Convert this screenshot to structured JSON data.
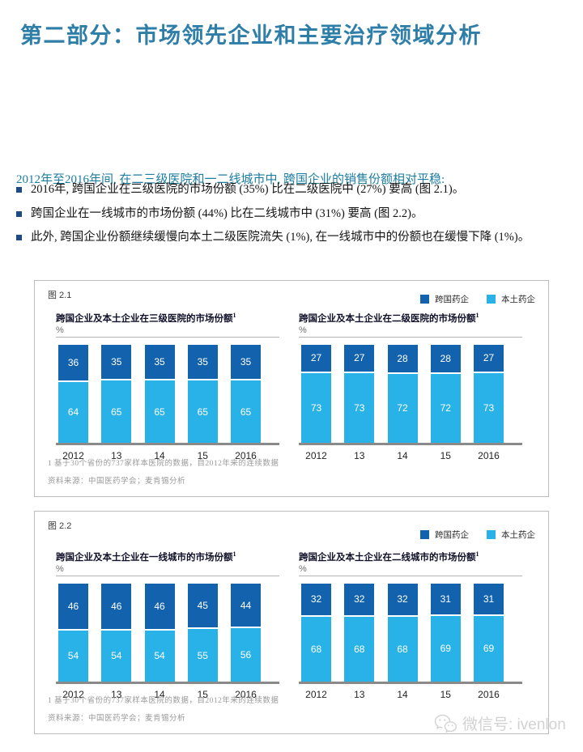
{
  "header": {
    "title": "第二部分：市场领先企业和主要治疗领域分析"
  },
  "intro": {
    "text": "2012年至2016年间, 在二三级医院和一二线城市中, 跨国企业的销售份额相对平稳:"
  },
  "bullets": [
    "2016年, 跨国企业在三级医院的市场份额 (35%) 比在二级医院中 (27%) 要高 (图 2.1)。",
    "跨国企业在一线城市的市场份额 (44%) 比在二线城市中 (31%) 要高 (图 2.2)。",
    "此外, 跨国企业份额继续缓慢向本土二级医院流失 (1%), 在一线城市中的份额也在缓慢下降 (1%)。"
  ],
  "legend": [
    {
      "key": "multinational",
      "label": "跨国药企"
    },
    {
      "key": "local",
      "label": "本土药企"
    }
  ],
  "colors": {
    "title_teal": "#2e7ea7",
    "multinational": "#1362ad",
    "local": "#29b2e8",
    "axis_gray": "#8a8a8a",
    "watermark_gray": "#d2d2d2"
  },
  "figures": [
    {
      "label": "图 2.1",
      "chart_indexes": [
        0,
        1
      ],
      "footnotes": [
        "1 基于30个省份的737家样本医院的数据，自2012年来的连续数据",
        "资料来源：中国医药学会；麦肯锡分析"
      ]
    },
    {
      "label": "图 2.2",
      "chart_indexes": [
        2,
        3
      ],
      "footnotes": [
        "1 基于30个省份的737家样本医院的数据，自2012年来的连续数据",
        "资料来源：中国医药学会；麦肯锡分析"
      ]
    }
  ],
  "chart_data": [
    {
      "type": "bar",
      "stacked": true,
      "title": "跨国企业及本土企业在三级医院的市场份额",
      "title_sup": "1",
      "ylabel": "%",
      "ylim": [
        0,
        100
      ],
      "legend_position": "top-right",
      "categories": [
        "2012",
        "13",
        "14",
        "15",
        "2016"
      ],
      "series": [
        {
          "name": "跨国药企",
          "values": [
            36,
            35,
            35,
            35,
            35
          ]
        },
        {
          "name": "本土药企",
          "values": [
            64,
            65,
            65,
            65,
            65
          ]
        }
      ]
    },
    {
      "type": "bar",
      "stacked": true,
      "title": "跨国企业及本土企业在二级医院的市场份额",
      "title_sup": "1",
      "ylabel": "%",
      "ylim": [
        0,
        100
      ],
      "legend_position": "top-right",
      "categories": [
        "2012",
        "13",
        "14",
        "15",
        "2016"
      ],
      "series": [
        {
          "name": "跨国药企",
          "values": [
            27,
            27,
            28,
            28,
            27
          ]
        },
        {
          "name": "本土药企",
          "values": [
            73,
            73,
            72,
            72,
            73
          ]
        }
      ]
    },
    {
      "type": "bar",
      "stacked": true,
      "title": "跨国企业及本土企业在一线城市的市场份额",
      "title_sup": "1",
      "ylabel": "%",
      "ylim": [
        0,
        100
      ],
      "legend_position": "top-right",
      "categories": [
        "2012",
        "13",
        "14",
        "15",
        "2016"
      ],
      "series": [
        {
          "name": "跨国药企",
          "values": [
            46,
            46,
            46,
            45,
            44
          ]
        },
        {
          "name": "本土药企",
          "values": [
            54,
            54,
            54,
            55,
            56
          ]
        }
      ]
    },
    {
      "type": "bar",
      "stacked": true,
      "title": "跨国企业及本土企业在二线城市的市场份额",
      "title_sup": "1",
      "ylabel": "%",
      "ylim": [
        0,
        100
      ],
      "legend_position": "top-right",
      "categories": [
        "2012",
        "13",
        "14",
        "15",
        "2016"
      ],
      "series": [
        {
          "name": "跨国药企",
          "values": [
            32,
            32,
            32,
            31,
            31
          ]
        },
        {
          "name": "本土药企",
          "values": [
            68,
            68,
            68,
            69,
            69
          ]
        }
      ]
    }
  ],
  "watermark": {
    "text": "微信号: ivenlon"
  }
}
